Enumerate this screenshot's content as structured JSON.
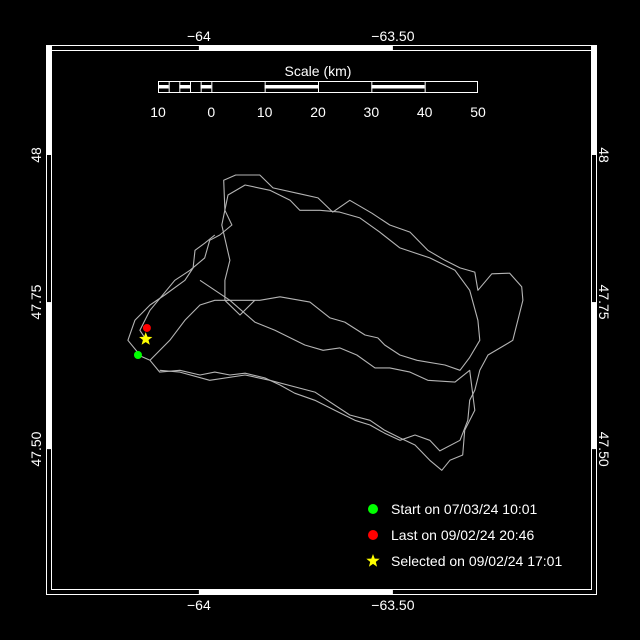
{
  "map": {
    "lon_range": [
      -64.394,
      -62.974
    ],
    "lat_range": [
      47.252,
      48.187
    ],
    "lon_ticks": [
      {
        "value": -64,
        "label": "−64"
      },
      {
        "value": -63.5,
        "label": "−63.50"
      }
    ],
    "lat_ticks": [
      {
        "value": 48,
        "label": "48"
      },
      {
        "value": 47.75,
        "label": "47.75"
      },
      {
        "value": 47.5,
        "label": "47.50"
      }
    ],
    "track_color": "#b4b4b4",
    "frame_color": "#ffffff",
    "background": "#000000"
  },
  "scale_bar": {
    "title": "Scale (km)",
    "range_km": [
      -10,
      50
    ],
    "tick_labels": [
      {
        "km": -10,
        "label": "10"
      },
      {
        "km": 0,
        "label": "0"
      },
      {
        "km": 10,
        "label": "10"
      },
      {
        "km": 20,
        "label": "20"
      },
      {
        "km": 30,
        "label": "30"
      },
      {
        "km": 40,
        "label": "40"
      },
      {
        "km": 50,
        "label": "50"
      }
    ]
  },
  "tracks": [
    [
      [
        -64.137,
        47.687
      ],
      [
        -64.152,
        47.702
      ],
      [
        -64.126,
        47.736
      ],
      [
        -64.062,
        47.787
      ],
      [
        -64.023,
        47.804
      ],
      [
        -63.985,
        47.825
      ],
      [
        -63.972,
        47.855
      ],
      [
        -63.946,
        47.864
      ],
      [
        -63.915,
        47.881
      ],
      [
        -63.933,
        47.906
      ],
      [
        -63.936,
        47.957
      ],
      [
        -63.905,
        47.966
      ],
      [
        -63.843,
        47.966
      ],
      [
        -63.809,
        47.944
      ],
      [
        -63.74,
        47.934
      ],
      [
        -63.693,
        47.927
      ],
      [
        -63.655,
        47.903
      ],
      [
        -63.611,
        47.923
      ],
      [
        -63.554,
        47.901
      ],
      [
        -63.508,
        47.881
      ],
      [
        -63.456,
        47.869
      ],
      [
        -63.41,
        47.838
      ],
      [
        -63.366,
        47.821
      ],
      [
        -63.327,
        47.808
      ],
      [
        -63.289,
        47.801
      ],
      [
        -63.281,
        47.77
      ],
      [
        -63.245,
        47.798
      ],
      [
        -63.199,
        47.799
      ],
      [
        -63.168,
        47.776
      ],
      [
        -63.165,
        47.753
      ],
      [
        -63.191,
        47.685
      ],
      [
        -63.211,
        47.677
      ],
      [
        -63.255,
        47.66
      ],
      [
        -63.276,
        47.634
      ],
      [
        -63.289,
        47.6
      ],
      [
        -63.302,
        47.583
      ],
      [
        -63.307,
        47.549
      ],
      [
        -63.327,
        47.515
      ],
      [
        -63.379,
        47.497
      ],
      [
        -63.405,
        47.515
      ],
      [
        -63.443,
        47.524
      ],
      [
        -63.482,
        47.515
      ],
      [
        -63.521,
        47.527
      ],
      [
        -63.559,
        47.541
      ],
      [
        -63.598,
        47.549
      ],
      [
        -63.65,
        47.566
      ],
      [
        -63.701,
        47.583
      ],
      [
        -63.753,
        47.595
      ],
      [
        -63.791,
        47.609
      ],
      [
        -63.83,
        47.621
      ],
      [
        -63.881,
        47.629
      ],
      [
        -63.92,
        47.626
      ],
      [
        -63.959,
        47.631
      ],
      [
        -63.997,
        47.626
      ],
      [
        -64.049,
        47.634
      ],
      [
        -64.101,
        47.631
      ],
      [
        -64.126,
        47.651
      ],
      [
        -64.157,
        47.66
      ]
    ],
    [
      [
        -64.126,
        47.651
      ],
      [
        -64.075,
        47.685
      ],
      [
        -64.036,
        47.719
      ],
      [
        -63.997,
        47.745
      ],
      [
        -63.959,
        47.753
      ],
      [
        -63.894,
        47.753
      ],
      [
        -63.843,
        47.753
      ],
      [
        -63.791,
        47.759
      ],
      [
        -63.714,
        47.75
      ],
      [
        -63.662,
        47.723
      ],
      [
        -63.624,
        47.716
      ],
      [
        -63.572,
        47.694
      ],
      [
        -63.539,
        47.689
      ],
      [
        -63.521,
        47.677
      ],
      [
        -63.482,
        47.66
      ],
      [
        -63.438,
        47.651
      ],
      [
        -63.366,
        47.643
      ],
      [
        -63.327,
        47.634
      ],
      [
        -63.302,
        47.656
      ],
      [
        -63.276,
        47.685
      ],
      [
        -63.281,
        47.719
      ],
      [
        -63.302,
        47.77
      ],
      [
        -63.34,
        47.804
      ],
      [
        -63.405,
        47.825
      ],
      [
        -63.482,
        47.842
      ],
      [
        -63.534,
        47.869
      ],
      [
        -63.585,
        47.893
      ],
      [
        -63.637,
        47.903
      ],
      [
        -63.688,
        47.906
      ],
      [
        -63.74,
        47.906
      ],
      [
        -63.765,
        47.923
      ],
      [
        -63.817,
        47.94
      ],
      [
        -63.881,
        47.949
      ],
      [
        -63.925,
        47.932
      ],
      [
        -63.941,
        47.881
      ],
      [
        -63.92,
        47.821
      ],
      [
        -63.933,
        47.787
      ],
      [
        -63.933,
        47.753
      ],
      [
        -63.894,
        47.728
      ],
      [
        -63.856,
        47.753
      ]
    ],
    [
      [
        -63.997,
        47.787
      ],
      [
        -63.92,
        47.753
      ],
      [
        -63.856,
        47.716
      ],
      [
        -63.804,
        47.702
      ],
      [
        -63.727,
        47.677
      ],
      [
        -63.68,
        47.668
      ],
      [
        -63.637,
        47.672
      ],
      [
        -63.593,
        47.66
      ],
      [
        -63.546,
        47.638
      ],
      [
        -63.508,
        47.638
      ],
      [
        -63.456,
        47.631
      ],
      [
        -63.41,
        47.617
      ],
      [
        -63.34,
        47.614
      ],
      [
        -63.302,
        47.634
      ],
      [
        -63.289,
        47.566
      ],
      [
        -63.315,
        47.532
      ],
      [
        -63.32,
        47.49
      ],
      [
        -63.353,
        47.481
      ],
      [
        -63.374,
        47.464
      ],
      [
        -63.405,
        47.481
      ],
      [
        -63.443,
        47.507
      ],
      [
        -63.482,
        47.519
      ],
      [
        -63.521,
        47.532
      ],
      [
        -63.559,
        47.549
      ],
      [
        -63.611,
        47.558
      ],
      [
        -63.701,
        47.597
      ],
      [
        -63.817,
        47.617
      ],
      [
        -63.881,
        47.626
      ],
      [
        -63.972,
        47.617
      ],
      [
        -64.049,
        47.631
      ],
      [
        -64.101,
        47.634
      ]
    ],
    [
      [
        -64.152,
        47.66
      ],
      [
        -64.183,
        47.685
      ],
      [
        -64.165,
        47.719
      ],
      [
        -64.126,
        47.745
      ],
      [
        -64.088,
        47.762
      ],
      [
        -64.036,
        47.787
      ],
      [
        -64.015,
        47.808
      ],
      [
        -64.01,
        47.838
      ],
      [
        -63.985,
        47.85
      ],
      [
        -63.959,
        47.864
      ]
    ]
  ],
  "markers": {
    "start": {
      "lon": -64.157,
      "lat": 47.66,
      "color": "#00ff00"
    },
    "last": {
      "lon": -64.134,
      "lat": 47.706,
      "color": "#ff0000"
    },
    "selected": {
      "lon": -64.137,
      "lat": 47.687,
      "color": "#ffff00"
    }
  },
  "legend": {
    "placement": "bottom-right",
    "items": [
      {
        "icon": "green-circle-icon",
        "color": "#00ff00",
        "label": "Start on 07/03/24 10:01"
      },
      {
        "icon": "red-circle-icon",
        "color": "#ff0000",
        "label": "Last on 09/02/24 20:46"
      },
      {
        "icon": "yellow-star-icon",
        "color": "#ffff00",
        "label": "Selected on 09/02/24 17:01"
      }
    ]
  }
}
